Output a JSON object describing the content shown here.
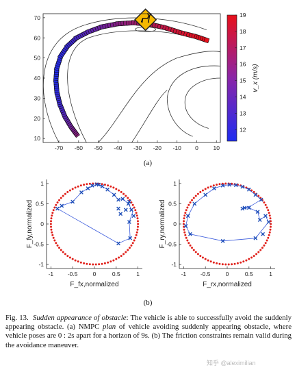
{
  "figure": {
    "label_a": "(a)",
    "label_b": "(b)",
    "caption": {
      "fig_number": "Fig. 13.",
      "title": "Sudden appearance of obstacle",
      "text_1": ": The vehicle is able to successfully avoid the suddenly appearing obstacle. (a) NMPC ",
      "emph": "plan",
      "text_2": " of vehicle avoiding suddenly appearing obstacle, where vehicle poses are 0 : 2s apart for a horizon of 9s. (b) The friction constraints remain valid during the avoidance maneuver."
    },
    "watermark": "知乎 @aleximilian"
  },
  "chart_data": [
    {
      "type": "scatter",
      "xlim": [
        -78,
        12
      ],
      "ylim": [
        8,
        72
      ],
      "xticks": [
        "-70",
        "-60",
        "-50",
        "-40",
        "-30",
        "-20",
        "-10",
        "0",
        "10"
      ],
      "yticks": [
        "10",
        "20",
        "30",
        "40",
        "50",
        "60",
        "70"
      ],
      "colorbar": {
        "label": "v_x (m/s)",
        "min": 11.3,
        "max": 19,
        "ticks": [
          "12",
          "13",
          "14",
          "15",
          "16",
          "17",
          "18",
          "19"
        ],
        "low_color": "#1e2cf0",
        "high_color": "#e8101a"
      },
      "path": [
        {
          "x": -61,
          "y": 12,
          "v": 15.5
        },
        {
          "x": -64,
          "y": 16,
          "v": 14.5
        },
        {
          "x": -67,
          "y": 21,
          "v": 13.5
        },
        {
          "x": -69.5,
          "y": 27,
          "v": 12.5
        },
        {
          "x": -71,
          "y": 33,
          "v": 12
        },
        {
          "x": -71.5,
          "y": 39,
          "v": 11.5
        },
        {
          "x": -71,
          "y": 45,
          "v": 11.5
        },
        {
          "x": -69,
          "y": 51,
          "v": 11.8
        },
        {
          "x": -65.5,
          "y": 56,
          "v": 12.2
        },
        {
          "x": -61,
          "y": 60,
          "v": 12.8
        },
        {
          "x": -55,
          "y": 63,
          "v": 13.5
        },
        {
          "x": -48,
          "y": 65.5,
          "v": 14.3
        },
        {
          "x": -40,
          "y": 67,
          "v": 15.2
        },
        {
          "x": -32,
          "y": 67.5,
          "v": 16
        },
        {
          "x": -24,
          "y": 66.8,
          "v": 16.8
        },
        {
          "x": -16,
          "y": 65,
          "v": 17.5
        },
        {
          "x": -8,
          "y": 62.5,
          "v": 18.2
        },
        {
          "x": 0,
          "y": 60.5,
          "v": 18.7
        },
        {
          "x": 6,
          "y": 58.5,
          "v": 19
        }
      ],
      "obstacle_sign": {
        "x": -26,
        "y": 69,
        "icon": "deer-crossing-sign-icon"
      }
    },
    {
      "type": "scatter",
      "xlabel": "F_fx,normalized",
      "ylabel": "F_fy,normalized",
      "xlim": [
        -1.1,
        1.1
      ],
      "ylim": [
        -1.1,
        1.1
      ],
      "xticks": [
        "-1",
        "-0.5",
        "0",
        "0.5",
        "1"
      ],
      "yticks": [
        "-1",
        "-0.5",
        "0",
        "0.5",
        "1"
      ],
      "points": [
        [
          0.55,
          0.38
        ],
        [
          0.6,
          0.25
        ],
        [
          0.72,
          0.35
        ],
        [
          0.78,
          0.5
        ],
        [
          0.65,
          0.62
        ],
        [
          0.55,
          0.6
        ],
        [
          0.45,
          0.72
        ],
        [
          0.3,
          0.85
        ],
        [
          0.18,
          0.93
        ],
        [
          0.1,
          0.97
        ],
        [
          0.05,
          0.98
        ],
        [
          -0.05,
          0.95
        ],
        [
          -0.15,
          0.88
        ],
        [
          -0.3,
          0.78
        ],
        [
          -0.5,
          0.55
        ],
        [
          -0.75,
          0.45
        ],
        [
          -0.85,
          0.38
        ],
        [
          0.55,
          -0.48
        ],
        [
          0.82,
          -0.35
        ],
        [
          0.8,
          0.05
        ],
        [
          0.85,
          0.35
        ],
        [
          0.9,
          0.2
        ],
        [
          0.8,
          0.55
        ]
      ],
      "line": [
        [
          -0.85,
          0.38
        ],
        [
          0.55,
          -0.48
        ],
        [
          0.82,
          -0.35
        ],
        [
          0.8,
          0.05
        ],
        [
          0.88,
          0.3
        ],
        [
          0.78,
          0.5
        ],
        [
          0.65,
          0.62
        ],
        [
          0.55,
          0.6
        ],
        [
          0.45,
          0.72
        ],
        [
          0.3,
          0.85
        ],
        [
          0.15,
          0.95
        ],
        [
          0.05,
          0.98
        ],
        [
          -0.15,
          0.88
        ],
        [
          -0.3,
          0.78
        ],
        [
          -0.5,
          0.55
        ],
        [
          -0.75,
          0.45
        ],
        [
          -0.85,
          0.38
        ]
      ],
      "limit_circle_radius": 1
    },
    {
      "type": "scatter",
      "xlabel": "F_rx,normalized",
      "ylabel": "F_ry,normalized",
      "xlim": [
        -1.1,
        1.1
      ],
      "ylim": [
        -1.1,
        1.1
      ],
      "xticks": [
        "-1",
        "-0.5",
        "0",
        "0.5",
        "1"
      ],
      "yticks": [
        "-1",
        "-0.5",
        "0",
        "0.5",
        "1"
      ],
      "points": [
        [
          -0.95,
          -0.05
        ],
        [
          -0.9,
          0.2
        ],
        [
          -0.75,
          0.5
        ],
        [
          -0.5,
          0.72
        ],
        [
          -0.3,
          0.88
        ],
        [
          -0.1,
          0.95
        ],
        [
          0.05,
          0.97
        ],
        [
          0.2,
          0.96
        ],
        [
          0.35,
          0.92
        ],
        [
          0.5,
          0.85
        ],
        [
          0.65,
          0.72
        ],
        [
          0.78,
          0.6
        ],
        [
          0.88,
          0.2
        ],
        [
          0.95,
          0.05
        ],
        [
          0.82,
          -0.25
        ],
        [
          0.65,
          -0.35
        ],
        [
          0.5,
          0.4
        ],
        [
          0.4,
          0.4
        ],
        [
          0.35,
          0.38
        ],
        [
          -0.1,
          -0.42
        ],
        [
          -0.85,
          -0.25
        ],
        [
          0.7,
          0.3
        ],
        [
          0.75,
          0.1
        ]
      ],
      "line": [
        [
          -0.95,
          -0.05
        ],
        [
          -0.85,
          -0.25
        ],
        [
          -0.1,
          -0.42
        ],
        [
          0.65,
          -0.35
        ],
        [
          0.95,
          0.05
        ],
        [
          0.88,
          0.2
        ],
        [
          0.75,
          0.1
        ],
        [
          0.7,
          0.3
        ],
        [
          0.5,
          0.4
        ],
        [
          0.35,
          0.38
        ],
        [
          0.55,
          0.45
        ],
        [
          0.78,
          0.6
        ],
        [
          0.65,
          0.72
        ],
        [
          0.5,
          0.85
        ],
        [
          0.35,
          0.92
        ],
        [
          0.2,
          0.96
        ],
        [
          0.05,
          0.97
        ],
        [
          -0.1,
          0.95
        ],
        [
          -0.3,
          0.88
        ],
        [
          -0.5,
          0.72
        ],
        [
          -0.75,
          0.5
        ],
        [
          -0.9,
          0.2
        ],
        [
          -0.95,
          -0.05
        ]
      ],
      "limit_circle_radius": 1
    }
  ]
}
